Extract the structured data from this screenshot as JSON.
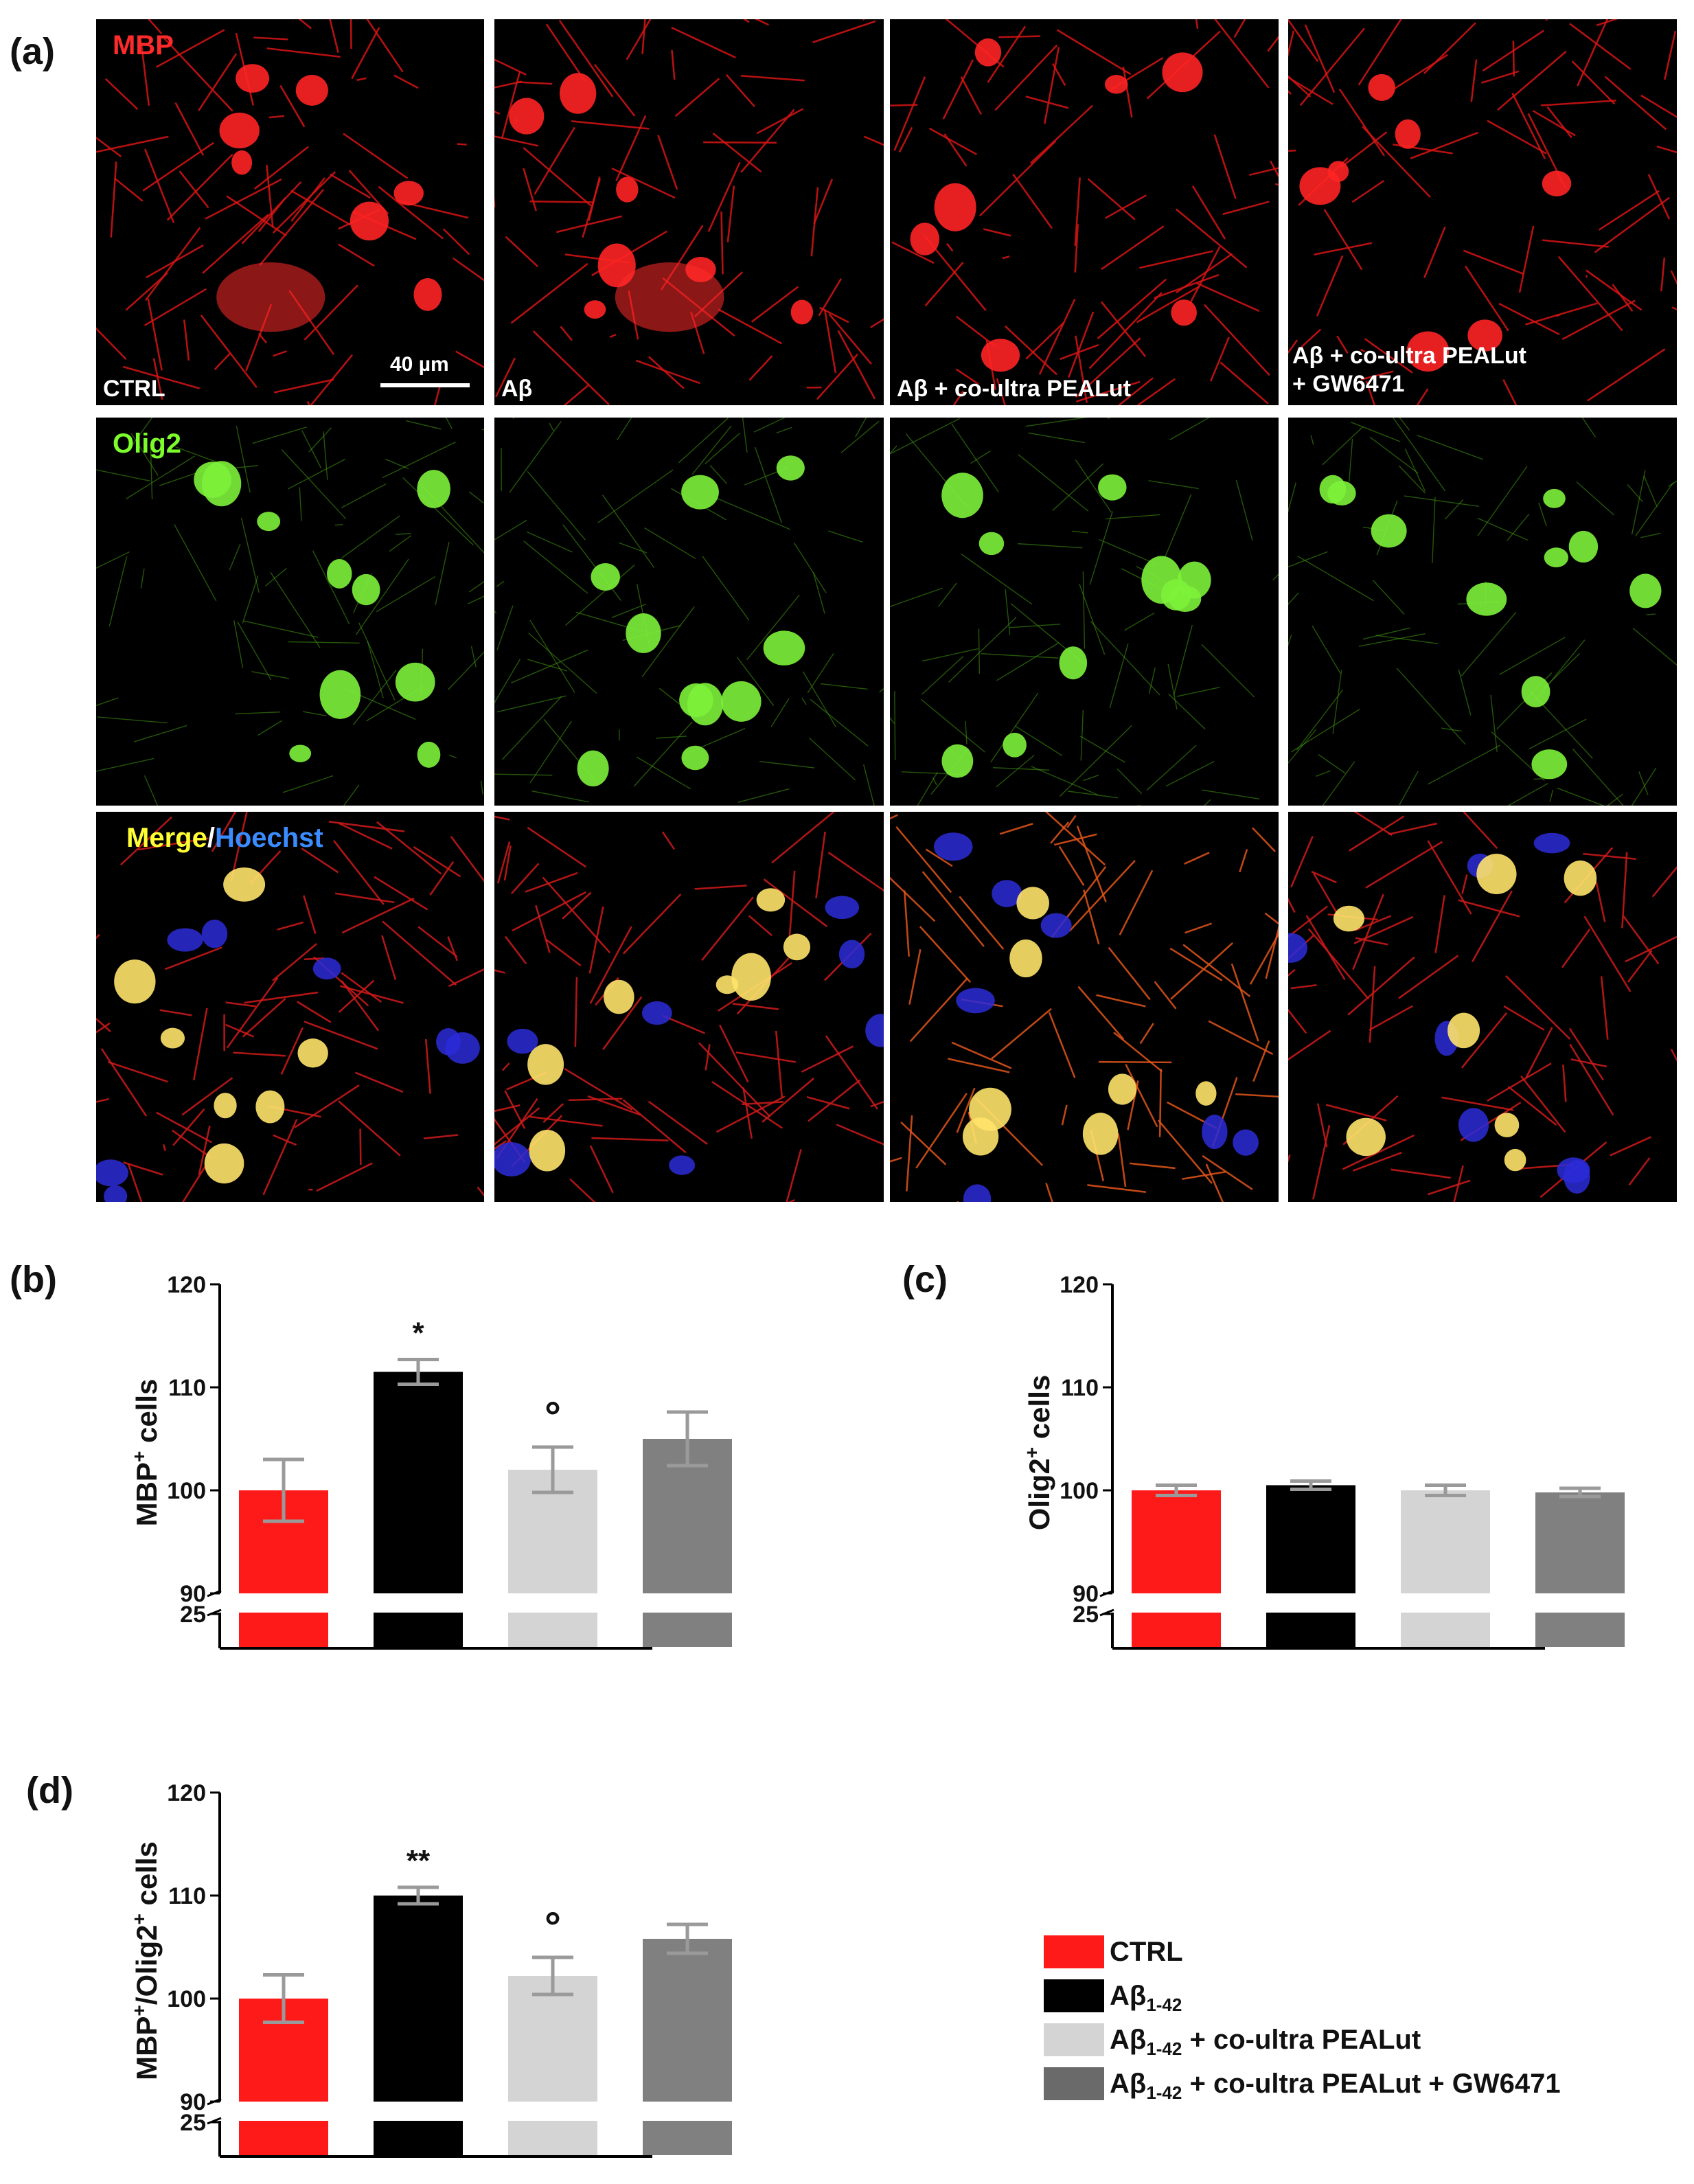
{
  "panels": {
    "a": "(a)",
    "b": "(b)",
    "c": "(c)",
    "d": "(d)"
  },
  "micrographs": {
    "channels": [
      {
        "label": "MBP",
        "color": "#ff2a2a"
      },
      {
        "label": "Olig2",
        "color": "#7cfc2a"
      },
      {
        "merge": "Merge",
        "slash": "/",
        "hoechst": "Hoechst",
        "merge_color": "#ffff33",
        "hoechst_color": "#3a8cff"
      }
    ],
    "conditions": [
      {
        "label": "CTRL"
      },
      {
        "label": "Aβ"
      },
      {
        "label": "Aβ + co-ultra PEALut"
      },
      {
        "label": "Aβ + co-ultra PEALut\n+ GW6471"
      }
    ],
    "scale_bar": "40 µm"
  },
  "chart_data": [
    {
      "panel": "b",
      "type": "bar",
      "ylabel_main": "MBP",
      "ylabel_sup": "+",
      "ylabel_rest": " cells",
      "yticks": [
        "120",
        "110",
        "100",
        "90"
      ],
      "ybreak_tick": "25",
      "ylim": [
        90,
        120
      ],
      "categories": [
        "CTRL",
        "Aβ1-42",
        "Aβ1-42 + co-ultra PEALut",
        "Aβ1-42 + co-ultra PEALut + GW6471"
      ],
      "values": [
        100,
        111.5,
        102,
        105
      ],
      "errors": [
        3,
        1.2,
        2.2,
        2.6
      ],
      "annotations": [
        "",
        "*",
        "°",
        ""
      ]
    },
    {
      "panel": "c",
      "type": "bar",
      "ylabel_main": "Olig2",
      "ylabel_sup": "+",
      "ylabel_rest": " cells",
      "yticks": [
        "120",
        "110",
        "100",
        "90"
      ],
      "ybreak_tick": "25",
      "ylim": [
        90,
        120
      ],
      "categories": [
        "CTRL",
        "Aβ1-42",
        "Aβ1-42 + co-ultra PEALut",
        "Aβ1-42 + co-ultra PEALut + GW6471"
      ],
      "values": [
        100,
        100.5,
        100,
        99.8
      ],
      "errors": [
        0.5,
        0.4,
        0.5,
        0.4
      ],
      "annotations": [
        "",
        "",
        "",
        ""
      ]
    },
    {
      "panel": "d",
      "type": "bar",
      "ylabel_main": "MBP",
      "ylabel_sup": "+",
      "ylabel_mid": "/Olig2",
      "ylabel_sup2": "+",
      "ylabel_rest": " cells",
      "yticks": [
        "120",
        "110",
        "100",
        "90"
      ],
      "ybreak_tick": "25",
      "ylim": [
        90,
        120
      ],
      "categories": [
        "CTRL",
        "Aβ1-42",
        "Aβ1-42 + co-ultra PEALut",
        "Aβ1-42 + co-ultra PEALut + GW6471"
      ],
      "values": [
        100,
        110,
        102.2,
        105.8
      ],
      "errors": [
        2.3,
        0.8,
        1.8,
        1.4
      ],
      "annotations": [
        "",
        "**",
        "°",
        ""
      ]
    }
  ],
  "colors": {
    "ctrl": "#ff1a1a",
    "abeta": "#000000",
    "abeta_pealut": "#d4d4d4",
    "abeta_pealut_gw": "#808080",
    "error": "#9a9a9a"
  },
  "legend": [
    {
      "main": "CTRL",
      "sub": "",
      "rest": ""
    },
    {
      "main": "Aβ",
      "sub": "1-42",
      "rest": ""
    },
    {
      "main": "Aβ",
      "sub": "1-42",
      "rest": " + co-ultra PEALut"
    },
    {
      "main": "Aβ",
      "sub": "1-42",
      "rest": " + co-ultra PEALut + GW6471"
    }
  ]
}
